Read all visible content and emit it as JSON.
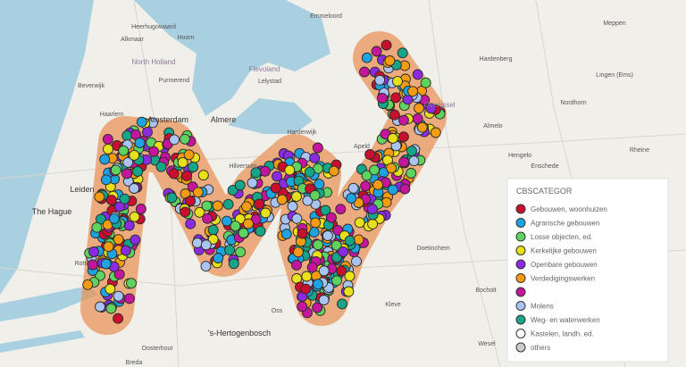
{
  "map": {
    "places": [
      {
        "label": "Emmeloord"
      },
      {
        "label": "Meppen"
      },
      {
        "label": "Heerhugowaard"
      },
      {
        "label": "Hoorn"
      },
      {
        "label": "Alkmaar"
      },
      {
        "label": "North Holland"
      },
      {
        "label": "Flevoland"
      },
      {
        "label": "Lelystad"
      },
      {
        "label": "Purmerend"
      },
      {
        "label": "Beverwijk"
      },
      {
        "label": "Haarlem"
      },
      {
        "label": "Amsterdam"
      },
      {
        "label": "Almere"
      },
      {
        "label": "Harderwijk"
      },
      {
        "label": "Hardenberg"
      },
      {
        "label": "Lingen (Ems)"
      },
      {
        "label": "Overijssel"
      },
      {
        "label": "Nordhorn"
      },
      {
        "label": "Almelo"
      },
      {
        "label": "Hengelo"
      },
      {
        "label": "Enschede"
      },
      {
        "label": "Rheine"
      },
      {
        "label": "Leiden"
      },
      {
        "label": "The Hague"
      },
      {
        "label": "Hilversum"
      },
      {
        "label": "Apeld"
      },
      {
        "label": "Doetinchem"
      },
      {
        "label": "Rotte"
      },
      {
        "label": "Oss"
      },
      {
        "label": "Kleve"
      },
      {
        "label": "'s-Hertogenbosch"
      },
      {
        "label": "Bocholt"
      },
      {
        "label": "Oosterhout"
      },
      {
        "label": "Breda"
      },
      {
        "label": "Wesel"
      }
    ],
    "legend": {
      "title": "CBSCATEGOR",
      "items": [
        {
          "label": "Gebouwen, woonhuizen",
          "color": "#c8102e"
        },
        {
          "label": "Agrarische gebouwen",
          "color": "#1fa3e0"
        },
        {
          "label": "Losse objecten, ed.",
          "color": "#5fd35f"
        },
        {
          "label": "Kerkelijke gebouwen",
          "color": "#e8e01a"
        },
        {
          "label": "Openbare gebouwen",
          "color": "#8a2be2"
        },
        {
          "label": "Verdedigingswerken",
          "color": "#f39c12"
        },
        {
          "color": "#c4169c"
        },
        {
          "label": "Molens",
          "color": "#a9c4f0"
        },
        {
          "label": "Weg- en waterwerken",
          "color": "#17a589"
        },
        {
          "label": "Kastelen, landh. ed.",
          "color": "#ffffff"
        },
        {
          "label": "others",
          "color": "#cccccc"
        }
      ]
    }
  }
}
